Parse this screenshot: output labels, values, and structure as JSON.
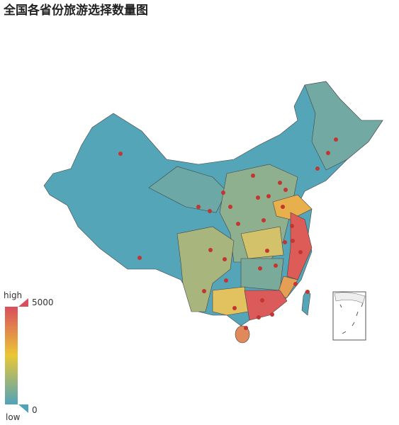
{
  "title": "全国各省份旅游选择数量图",
  "visual_map": {
    "min": 0,
    "max": 5000,
    "text_high": "high",
    "text_low": "low",
    "colors": [
      "#50a3ba",
      "#eac736",
      "#d94e5d"
    ]
  }
}
